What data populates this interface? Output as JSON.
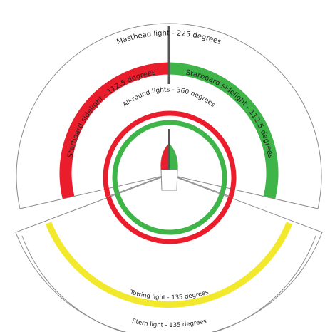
{
  "labels": {
    "masthead": "Masthead light - 225 degrees",
    "port_sidelight": "Starboard sidelight - 112.5 degrees",
    "starboard_sidelight": "Starboard sidelight - 112.5 degrees",
    "all_round": "All-round lights - 360 degrees",
    "towing": "Towing light - 135 degrees",
    "stern": "Stern light - 135 degrees"
  },
  "sectors": {
    "masthead_degrees": 225,
    "sidelight_degrees": 112.5,
    "all_round_degrees": 360,
    "towing_degrees": 135,
    "stern_degrees": 135
  },
  "colors": {
    "red": "#ea1d2c",
    "green": "#3fb449",
    "yellow": "#f2e82c",
    "outline": "#8a8a8a",
    "mast": "#555555"
  }
}
